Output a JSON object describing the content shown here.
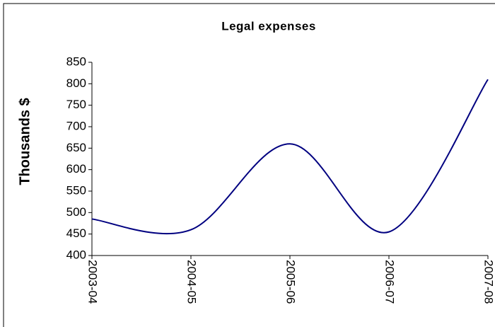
{
  "chart_data": {
    "type": "line",
    "title": "Legal expenses",
    "y_label": "Thousands $",
    "categories": [
      "2003-04",
      "2004-05",
      "2005-06",
      "2006-07",
      "2007-08"
    ],
    "values": [
      485,
      460,
      660,
      455,
      810
    ],
    "color": "#000080",
    "smooth": true,
    "ylim": [
      400,
      850
    ],
    "yticks": [
      400,
      450,
      500,
      550,
      600,
      650,
      700,
      750,
      800,
      850
    ],
    "grid": false
  }
}
